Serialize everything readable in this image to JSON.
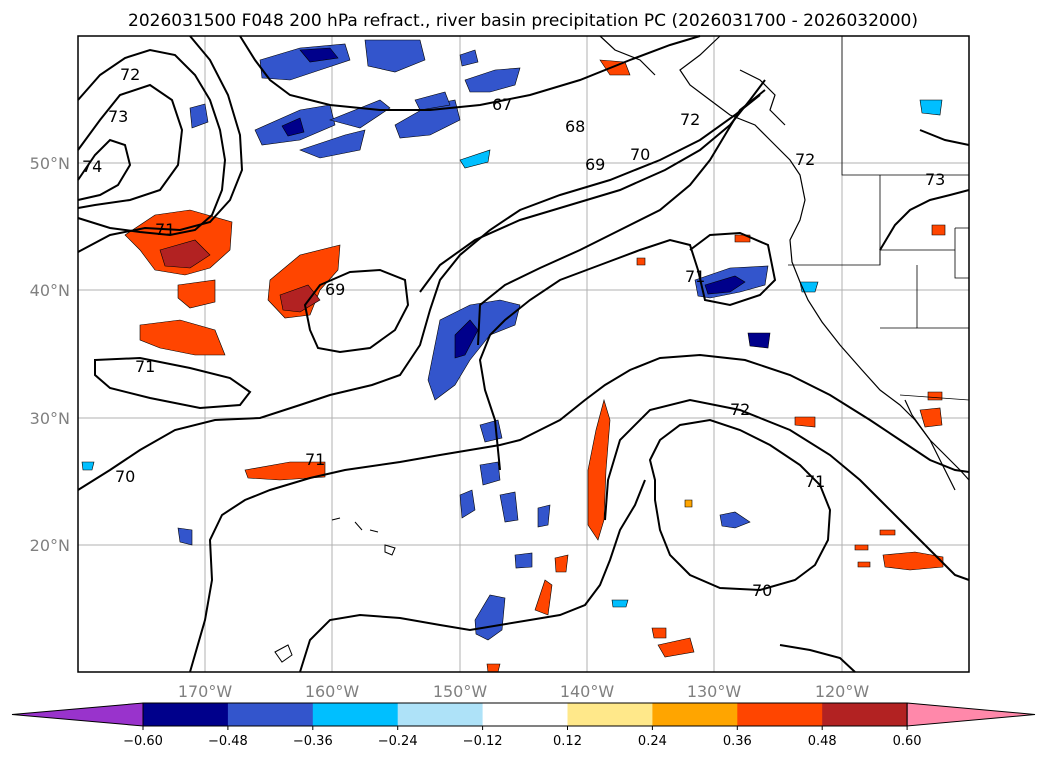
{
  "title": "2026031500 F048 200 hPa refract., river basin precipitation PC (2026031700 - 2026032000)",
  "lat_labels": [
    "50°N",
    "40°N",
    "30°N",
    "20°N"
  ],
  "lon_labels": [
    "170°W",
    "160°W",
    "150°W",
    "140°W",
    "130°W",
    "120°W"
  ],
  "contour_labels": [
    "72",
    "73",
    "74",
    "71",
    "69",
    "71",
    "70",
    "71",
    "67",
    "68",
    "69",
    "70",
    "72",
    "71",
    "72",
    "72",
    "71",
    "70",
    "73"
  ],
  "colorbar": {
    "ticks": [
      "−0.60",
      "−0.48",
      "−0.36",
      "−0.24",
      "−0.12",
      "0.12",
      "0.24",
      "0.36",
      "0.48",
      "0.60"
    ],
    "colors": [
      "#9933cc",
      "#00008b",
      "#3355cc",
      "#00bfff",
      "#aee2f8",
      "#ffffff",
      "#ffe88a",
      "#ffa500",
      "#ff4500",
      "#b22222",
      "#ff88aa"
    ]
  }
}
